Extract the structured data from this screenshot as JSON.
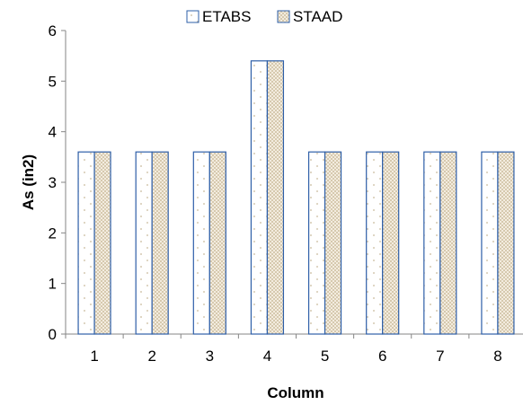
{
  "chart_data": {
    "type": "bar",
    "title": "",
    "xlabel": "Column",
    "ylabel": "As (in2)",
    "categories": [
      "1",
      "2",
      "3",
      "4",
      "5",
      "6",
      "7",
      "8"
    ],
    "series": [
      {
        "name": "ETABS",
        "values": [
          3.6,
          3.6,
          3.6,
          5.4,
          3.6,
          3.6,
          3.6,
          3.6
        ],
        "color": "#2e5fa8",
        "fill": "dotted"
      },
      {
        "name": "STAAD",
        "values": [
          3.6,
          3.6,
          3.6,
          5.4,
          3.6,
          3.6,
          3.6,
          3.6
        ],
        "color": "#2e5fa8",
        "fill": "checkered"
      }
    ],
    "ylim": [
      0,
      6
    ],
    "yticks": [
      "0",
      "1",
      "2",
      "3",
      "4",
      "5",
      "6"
    ],
    "grid": false,
    "legend_position": "top-center"
  }
}
